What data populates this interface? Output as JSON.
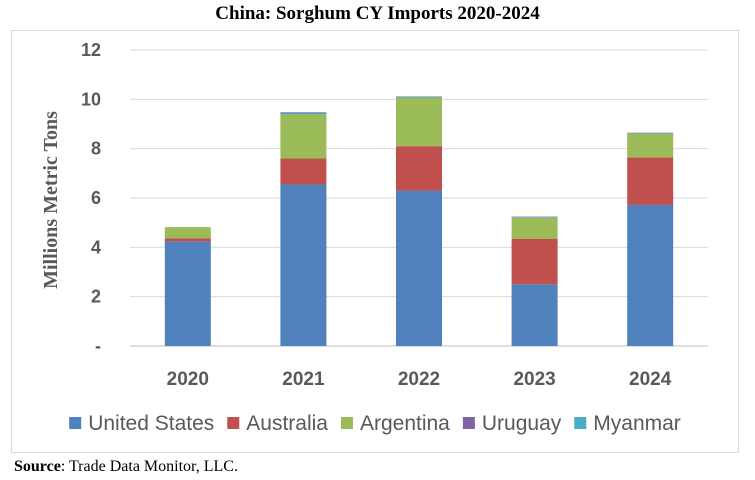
{
  "chart_data": {
    "type": "bar",
    "stacked": true,
    "title": "China: Sorghum CY Imports 2020-2024",
    "ylabel": "Millions Metric Tons",
    "xlabel": "",
    "categories": [
      "2020",
      "2021",
      "2022",
      "2023",
      "2024"
    ],
    "ylim": [
      0,
      12
    ],
    "yticks": [
      0,
      2,
      4,
      6,
      8,
      10,
      12
    ],
    "ytick_labels": [
      "-",
      "2",
      "4",
      "6",
      "8",
      "10",
      "12"
    ],
    "grid": true,
    "legend_position": "bottom",
    "series": [
      {
        "name": "United States",
        "color": "#4f81bd",
        "values": [
          4.24,
          6.55,
          6.3,
          2.5,
          5.72
        ]
      },
      {
        "name": "Australia",
        "color": "#c0504d",
        "values": [
          0.13,
          1.05,
          1.8,
          1.85,
          1.92
        ]
      },
      {
        "name": "Argentina",
        "color": "#9bbb59",
        "values": [
          0.45,
          1.8,
          1.97,
          0.85,
          0.97
        ]
      },
      {
        "name": "Uruguay",
        "color": "#8064a2",
        "values": [
          0.0,
          0.03,
          0.02,
          0.02,
          0.02
        ]
      },
      {
        "name": "Myanmar",
        "color": "#4bacc6",
        "values": [
          0.0,
          0.05,
          0.03,
          0.03,
          0.02
        ]
      }
    ]
  },
  "source": {
    "label": "Source",
    "text": ": Trade Data Monitor, LLC."
  }
}
